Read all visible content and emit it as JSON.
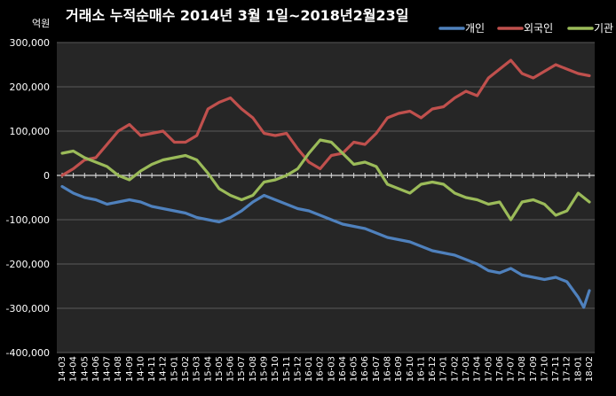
{
  "chart_data": {
    "type": "line",
    "title": "거래소 누적순매수 2014년 3월 1일~2018년2월23일",
    "unit_label": "억원",
    "ylim": [
      -400000,
      300000
    ],
    "y_ticks": [
      300000,
      200000,
      100000,
      0,
      -100000,
      -200000,
      -300000,
      -400000
    ],
    "y_tick_labels": [
      "300,000",
      "200,000",
      "100,000",
      "0",
      "-100,000",
      "-200,000",
      "-300,000",
      "-400,000"
    ],
    "x_ticks": [
      "14-03",
      "14-04",
      "14-05",
      "14-06",
      "14-07",
      "14-08",
      "14-09",
      "14-10",
      "14-11",
      "14-12",
      "15-01",
      "15-02",
      "15-03",
      "15-04",
      "15-05",
      "15-06",
      "15-07",
      "15-08",
      "15-09",
      "15-10",
      "15-11",
      "15-12",
      "16-01",
      "16-02",
      "16-03",
      "16-04",
      "16-05",
      "16-06",
      "16-07",
      "16-08",
      "16-09",
      "16-10",
      "16-11",
      "16-12",
      "17-01",
      "17-02",
      "17-03",
      "17-04",
      "17-05",
      "17-06",
      "17-07",
      "17-08",
      "17-09",
      "17-10",
      "17-11",
      "17-12",
      "18-01",
      "18-02"
    ],
    "grid": true,
    "legend_position": "top-right",
    "series": [
      {
        "name": "개인",
        "color": "#4F81BD",
        "points": [
          [
            "14-03",
            -25000
          ],
          [
            "14-04",
            -40000
          ],
          [
            "14-05",
            -50000
          ],
          [
            "14-06",
            -55000
          ],
          [
            "14-07",
            -65000
          ],
          [
            "14-08",
            -60000
          ],
          [
            "14-09",
            -55000
          ],
          [
            "14-10",
            -60000
          ],
          [
            "14-11",
            -70000
          ],
          [
            "14-12",
            -75000
          ],
          [
            "15-01",
            -80000
          ],
          [
            "15-02",
            -85000
          ],
          [
            "15-03",
            -95000
          ],
          [
            "15-04",
            -100000
          ],
          [
            "15-05",
            -105000
          ],
          [
            "15-06",
            -95000
          ],
          [
            "15-07",
            -80000
          ],
          [
            "15-08",
            -60000
          ],
          [
            "15-09",
            -45000
          ],
          [
            "15-10",
            -55000
          ],
          [
            "15-11",
            -65000
          ],
          [
            "15-12",
            -75000
          ],
          [
            "16-01",
            -80000
          ],
          [
            "16-02",
            -90000
          ],
          [
            "16-03",
            -100000
          ],
          [
            "16-04",
            -110000
          ],
          [
            "16-05",
            -115000
          ],
          [
            "16-06",
            -120000
          ],
          [
            "16-07",
            -130000
          ],
          [
            "16-08",
            -140000
          ],
          [
            "16-09",
            -145000
          ],
          [
            "16-10",
            -150000
          ],
          [
            "16-11",
            -160000
          ],
          [
            "16-12",
            -170000
          ],
          [
            "17-01",
            -175000
          ],
          [
            "17-02",
            -180000
          ],
          [
            "17-03",
            -190000
          ],
          [
            "17-04",
            -200000
          ],
          [
            "17-05",
            -215000
          ],
          [
            "17-06",
            -220000
          ],
          [
            "17-07",
            -210000
          ],
          [
            "17-08",
            -225000
          ],
          [
            "17-09",
            -230000
          ],
          [
            "17-10",
            -235000
          ],
          [
            "17-11",
            -230000
          ],
          [
            "17-12",
            -240000
          ],
          [
            "18-01",
            -275000
          ],
          [
            "18-01b",
            -298000
          ],
          [
            "18-02",
            -260000
          ]
        ]
      },
      {
        "name": "외국인",
        "color": "#C0504D",
        "points": [
          [
            "14-03",
            0
          ],
          [
            "14-04",
            15000
          ],
          [
            "14-05",
            35000
          ],
          [
            "14-06",
            40000
          ],
          [
            "14-07",
            70000
          ],
          [
            "14-08",
            100000
          ],
          [
            "14-09",
            115000
          ],
          [
            "14-10",
            90000
          ],
          [
            "14-11",
            95000
          ],
          [
            "14-12",
            100000
          ],
          [
            "15-01",
            75000
          ],
          [
            "15-02",
            75000
          ],
          [
            "15-03",
            90000
          ],
          [
            "15-04",
            150000
          ],
          [
            "15-05",
            165000
          ],
          [
            "15-06",
            175000
          ],
          [
            "15-07",
            150000
          ],
          [
            "15-08",
            130000
          ],
          [
            "15-09",
            95000
          ],
          [
            "15-10",
            90000
          ],
          [
            "15-11",
            95000
          ],
          [
            "15-12",
            60000
          ],
          [
            "16-01",
            30000
          ],
          [
            "16-02",
            15000
          ],
          [
            "16-03",
            45000
          ],
          [
            "16-04",
            50000
          ],
          [
            "16-05",
            75000
          ],
          [
            "16-06",
            70000
          ],
          [
            "16-07",
            95000
          ],
          [
            "16-08",
            130000
          ],
          [
            "16-09",
            140000
          ],
          [
            "16-10",
            145000
          ],
          [
            "16-11",
            130000
          ],
          [
            "16-12",
            150000
          ],
          [
            "17-01",
            155000
          ],
          [
            "17-02",
            175000
          ],
          [
            "17-03",
            190000
          ],
          [
            "17-04",
            180000
          ],
          [
            "17-05",
            220000
          ],
          [
            "17-06",
            240000
          ],
          [
            "17-07",
            260000
          ],
          [
            "17-08",
            230000
          ],
          [
            "17-09",
            220000
          ],
          [
            "17-10",
            235000
          ],
          [
            "17-11",
            250000
          ],
          [
            "17-12",
            240000
          ],
          [
            "18-01",
            230000
          ],
          [
            "18-02",
            225000
          ]
        ]
      },
      {
        "name": "기관",
        "color": "#9BBB59",
        "points": [
          [
            "14-03",
            50000
          ],
          [
            "14-04",
            55000
          ],
          [
            "14-05",
            40000
          ],
          [
            "14-06",
            30000
          ],
          [
            "14-07",
            20000
          ],
          [
            "14-08",
            0
          ],
          [
            "14-09",
            -10000
          ],
          [
            "14-10",
            10000
          ],
          [
            "14-11",
            25000
          ],
          [
            "14-12",
            35000
          ],
          [
            "15-01",
            40000
          ],
          [
            "15-02",
            45000
          ],
          [
            "15-03",
            35000
          ],
          [
            "15-04",
            5000
          ],
          [
            "15-05",
            -30000
          ],
          [
            "15-06",
            -45000
          ],
          [
            "15-07",
            -55000
          ],
          [
            "15-08",
            -45000
          ],
          [
            "15-09",
            -15000
          ],
          [
            "15-10",
            -10000
          ],
          [
            "15-11",
            0
          ],
          [
            "15-12",
            15000
          ],
          [
            "16-01",
            50000
          ],
          [
            "16-02",
            80000
          ],
          [
            "16-03",
            75000
          ],
          [
            "16-04",
            50000
          ],
          [
            "16-05",
            25000
          ],
          [
            "16-06",
            30000
          ],
          [
            "16-07",
            20000
          ],
          [
            "16-08",
            -20000
          ],
          [
            "16-09",
            -30000
          ],
          [
            "16-10",
            -40000
          ],
          [
            "16-11",
            -20000
          ],
          [
            "16-12",
            -15000
          ],
          [
            "17-01",
            -20000
          ],
          [
            "17-02",
            -40000
          ],
          [
            "17-03",
            -50000
          ],
          [
            "17-04",
            -55000
          ],
          [
            "17-05",
            -65000
          ],
          [
            "17-06",
            -60000
          ],
          [
            "17-07",
            -100000
          ],
          [
            "17-08",
            -60000
          ],
          [
            "17-09",
            -55000
          ],
          [
            "17-10",
            -65000
          ],
          [
            "17-11",
            -90000
          ],
          [
            "17-12",
            -80000
          ],
          [
            "18-01",
            -40000
          ],
          [
            "18-02",
            -60000
          ]
        ]
      }
    ]
  }
}
